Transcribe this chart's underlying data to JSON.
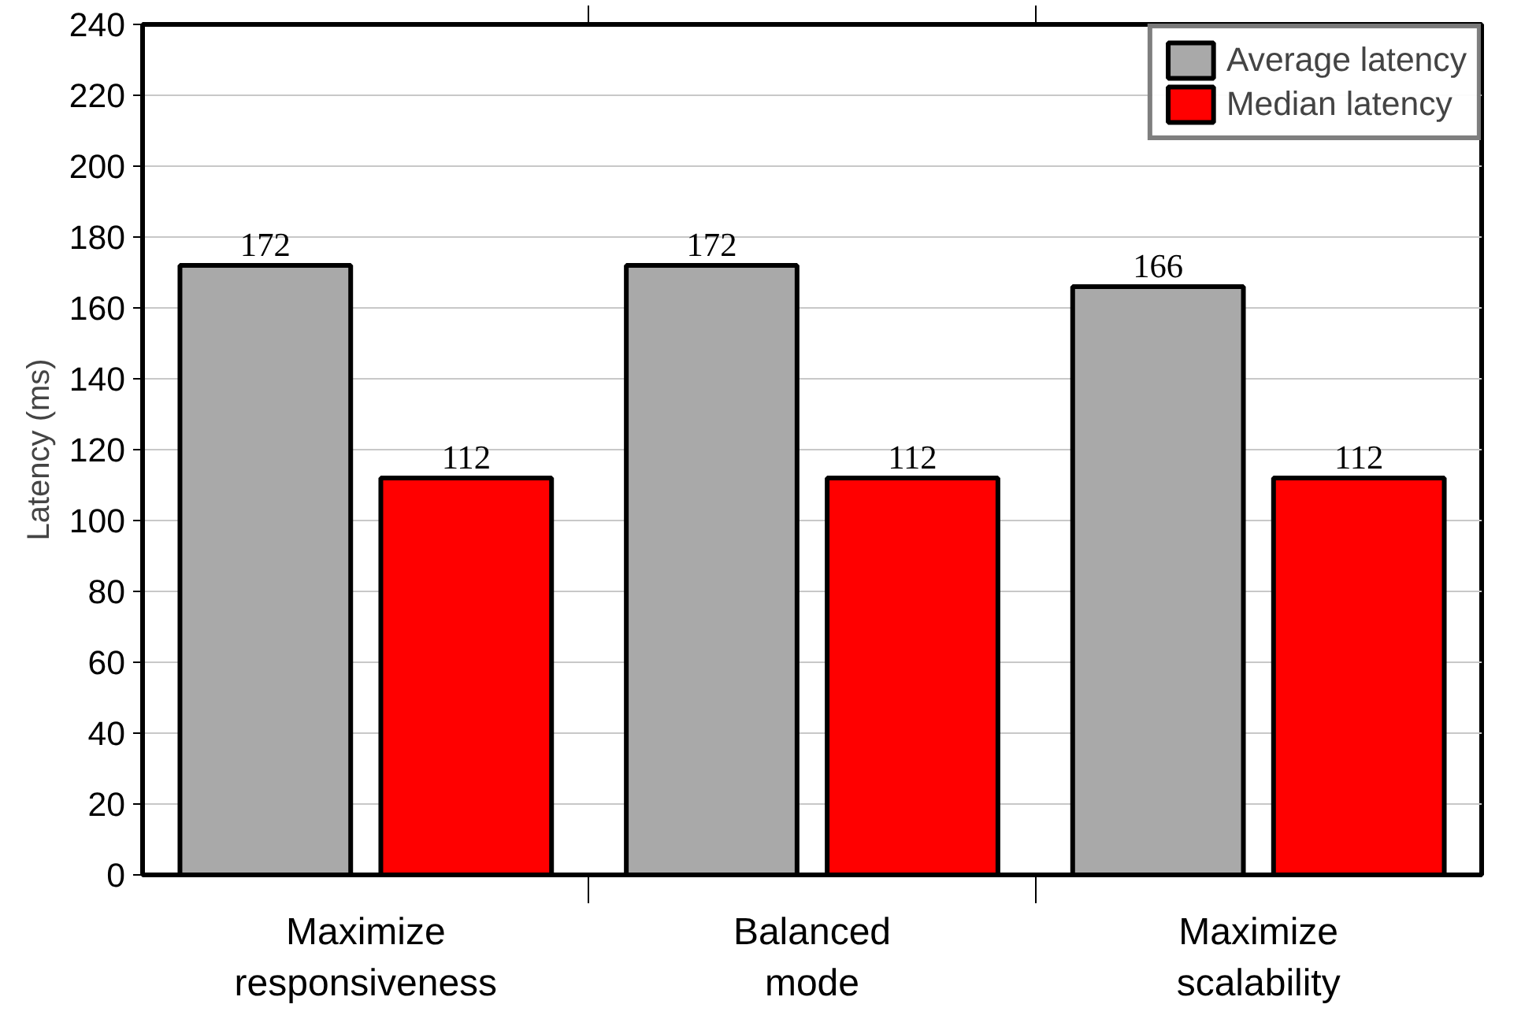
{
  "chart_data": {
    "type": "bar",
    "ylabel": "Latency (ms)",
    "categories": [
      "Maximize responsiveness",
      "Balanced mode",
      "Maximize scalability"
    ],
    "series": [
      {
        "name": "Average latency",
        "color": "#a9a9a9",
        "values": [
          172,
          172,
          166
        ]
      },
      {
        "name": "Median latency",
        "color": "#ff0000",
        "values": [
          112,
          112,
          112
        ]
      }
    ],
    "ylim": [
      0,
      240
    ],
    "yticks": [
      0,
      20,
      40,
      60,
      80,
      100,
      120,
      140,
      160,
      180,
      200,
      220,
      240
    ],
    "grid": "y",
    "legend": "top right",
    "data_labels": true
  }
}
